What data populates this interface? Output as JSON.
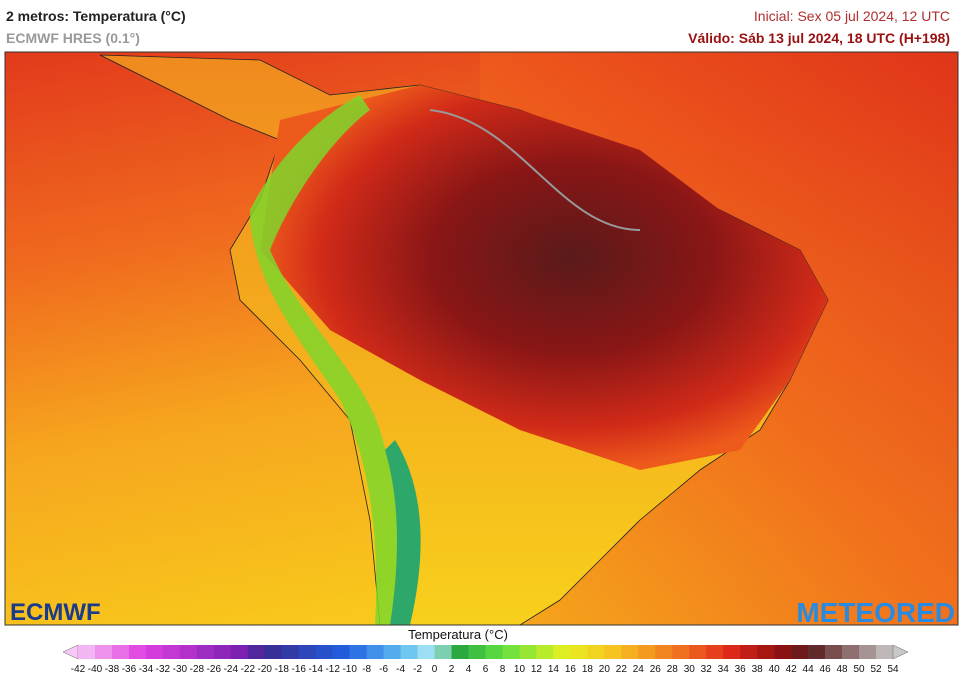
{
  "header": {
    "title": "2 metros: Temperatura (°C)",
    "subtitle": "ECMWF HRES (0.1°)",
    "initial": "Inicial: Sex 05 jul 2024, 12 UTC",
    "valid": "Válido: Sáb 13 jul 2024, 18 UTC (H+198)"
  },
  "logos": {
    "left": "ECMWF",
    "right": "METEORED"
  },
  "legend": {
    "title": "Temperatura (°C)",
    "ticks": [
      -42,
      -40,
      -38,
      -36,
      -34,
      -32,
      -30,
      -28,
      -26,
      -24,
      -22,
      -20,
      -18,
      -16,
      -14,
      -12,
      -10,
      -8,
      -6,
      -4,
      -2,
      0,
      2,
      4,
      6,
      8,
      10,
      12,
      14,
      16,
      18,
      20,
      22,
      24,
      26,
      28,
      30,
      32,
      34,
      36,
      38,
      40,
      42,
      44,
      46,
      48,
      50,
      52,
      54
    ]
  }
}
